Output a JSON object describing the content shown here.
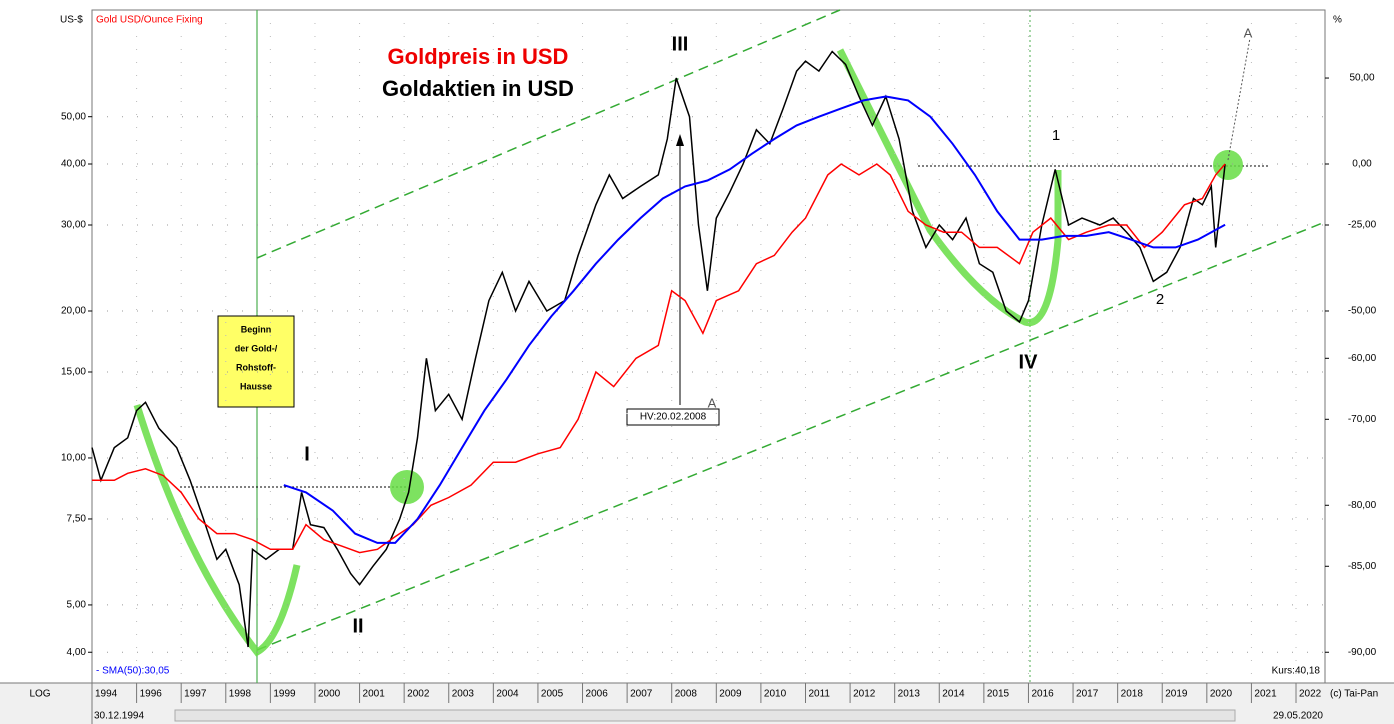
{
  "chart_data": {
    "type": "line",
    "title": "Goldpreis in USD",
    "subtitle": "Goldaktien in USD",
    "log_scale": true,
    "grid": true,
    "y_axis_label": "US-$",
    "y2_axis_label": "%",
    "legend_gold": "Gold USD/Ounce Fixing",
    "sma_label": "- SMA(50):30,05",
    "price_label": "Kurs:40,18",
    "scale_mode": "LOG",
    "start_date": "30.12.1994",
    "end_date": "29.05.2020",
    "copyright": "(c) Tai-Pan",
    "x_first_label": "1994",
    "annotations": {
      "I": "I",
      "II": "II",
      "III": "III",
      "IV": "IV",
      "one": "1",
      "two": "2",
      "a1": "A",
      "a2": "A",
      "hv": "HV:20.02.2008",
      "box": [
        "Beginn",
        "der Gold-/",
        "Rohstoff-",
        "Hausse"
      ]
    },
    "xlim": [
      1995,
      2022.65
    ],
    "xticks": [
      1996,
      1997,
      1998,
      1999,
      2000,
      2001,
      2002,
      2003,
      2004,
      2005,
      2006,
      2007,
      2008,
      2009,
      2010,
      2011,
      2012,
      2013,
      2014,
      2015,
      2016,
      2017,
      2018,
      2019,
      2020,
      2021,
      2022
    ],
    "ylim": [
      3.46,
      82.7
    ],
    "yticks": [
      {
        "value": 4,
        "label": "4,00"
      },
      {
        "value": 5,
        "label": "5,00"
      },
      {
        "value": 7.5,
        "label": "7,50"
      },
      {
        "value": 10,
        "label": "10,00"
      },
      {
        "value": 15,
        "label": "15,00"
      },
      {
        "value": 20,
        "label": "20,00"
      },
      {
        "value": 30,
        "label": "30,00"
      },
      {
        "value": 40,
        "label": "40,00"
      },
      {
        "value": 50,
        "label": "50,00"
      }
    ],
    "y2lim": [
      -91.35,
      106.75
    ],
    "y2ticks": [
      {
        "value": -90,
        "label": "-90,00"
      },
      {
        "value": -85,
        "label": "-85,00"
      },
      {
        "value": -80,
        "label": "-80,00"
      },
      {
        "value": -70,
        "label": "-70,00"
      },
      {
        "value": -60,
        "label": "-60,00"
      },
      {
        "value": -50,
        "label": "-50,00"
      },
      {
        "value": -25,
        "label": "-25,00"
      },
      {
        "value": 0,
        "label": "0,00"
      },
      {
        "value": 50,
        "label": "50,00"
      }
    ],
    "series": [
      {
        "name": "Goldaktien in USD",
        "color": "#000000",
        "x": [
          1995.0,
          1995.2,
          1995.5,
          1995.8,
          1996.0,
          1996.2,
          1996.5,
          1996.9,
          1997.2,
          1997.5,
          1997.8,
          1998.0,
          1998.3,
          1998.5,
          1998.6,
          1998.9,
          1999.2,
          1999.5,
          1999.7,
          1999.9,
          2000.2,
          2000.5,
          2000.8,
          2001.0,
          2001.3,
          2001.6,
          2001.9,
          2002.1,
          2002.3,
          2002.5,
          2002.7,
          2003.0,
          2003.3,
          2003.6,
          2003.9,
          2004.2,
          2004.5,
          2004.8,
          2005.2,
          2005.6,
          2005.9,
          2006.3,
          2006.6,
          2006.9,
          2007.3,
          2007.7,
          2007.9,
          2008.1,
          2008.4,
          2008.6,
          2008.8,
          2009.0,
          2009.3,
          2009.6,
          2009.9,
          2010.2,
          2010.5,
          2010.8,
          2011.0,
          2011.3,
          2011.6,
          2011.9,
          2012.2,
          2012.5,
          2012.8,
          2013.1,
          2013.4,
          2013.7,
          2014.0,
          2014.3,
          2014.6,
          2014.9,
          2015.2,
          2015.5,
          2015.8,
          2016.0,
          2016.3,
          2016.6,
          2016.9,
          2017.2,
          2017.6,
          2017.9,
          2018.2,
          2018.5,
          2018.8,
          2019.1,
          2019.4,
          2019.7,
          2019.9,
          2020.1,
          2020.2,
          2020.41
        ],
        "values": [
          10.5,
          9.0,
          10.5,
          11,
          12.5,
          13,
          11.5,
          10.5,
          9,
          7.5,
          6.2,
          6.5,
          5.5,
          4.1,
          6.5,
          6.2,
          6.5,
          6.5,
          8.5,
          7.3,
          7.2,
          6.5,
          5.8,
          5.5,
          6.0,
          6.5,
          7.5,
          8.5,
          11,
          16,
          12.5,
          13.5,
          12,
          16,
          21,
          24,
          20,
          23,
          20,
          21,
          26,
          33,
          38,
          34,
          36,
          38,
          45,
          60,
          50,
          30,
          22,
          31,
          35,
          40,
          47,
          44,
          52,
          62,
          65,
          62,
          68,
          64,
          55,
          48,
          55,
          45,
          32,
          27,
          30,
          28,
          31,
          25,
          24,
          20,
          19,
          21,
          30,
          39,
          30,
          31,
          30,
          31,
          29,
          27,
          23,
          24,
          27,
          34,
          33,
          36,
          27,
          40
        ]
      },
      {
        "name": "Goldpreis in USD",
        "color": "#ff0000",
        "x": [
          1995.0,
          1995.5,
          1995.8,
          1996.2,
          1996.6,
          1997.0,
          1997.4,
          1997.8,
          1998.2,
          1998.6,
          1999.0,
          1999.5,
          1999.8,
          2000.2,
          2000.6,
          2001.0,
          2001.4,
          2001.8,
          2002.2,
          2002.6,
          2003.0,
          2003.5,
          2004.0,
          2004.5,
          2005.0,
          2005.5,
          2005.9,
          2006.3,
          2006.7,
          2007.2,
          2007.7,
          2008.0,
          2008.3,
          2008.7,
          2009.0,
          2009.5,
          2009.9,
          2010.3,
          2010.7,
          2011.0,
          2011.5,
          2011.8,
          2012.2,
          2012.6,
          2012.9,
          2013.3,
          2013.7,
          2014.1,
          2014.5,
          2014.9,
          2015.3,
          2015.8,
          2016.1,
          2016.5,
          2016.9,
          2017.3,
          2017.8,
          2018.2,
          2018.6,
          2019.0,
          2019.5,
          2019.9,
          2020.2,
          2020.41
        ],
        "values": [
          9,
          9,
          9.3,
          9.5,
          9.2,
          8.5,
          7.5,
          7.0,
          7.0,
          6.8,
          6.5,
          6.5,
          7.3,
          6.8,
          6.6,
          6.4,
          6.5,
          6.9,
          7.3,
          8.0,
          8.3,
          8.8,
          9.8,
          9.8,
          10.2,
          10.5,
          12,
          15,
          14,
          16,
          17,
          22,
          21,
          18,
          21,
          22,
          25,
          26,
          29,
          31,
          38,
          40,
          38,
          40,
          38,
          32,
          30,
          29,
          29,
          27,
          27,
          25,
          29,
          31,
          28,
          29,
          30,
          30,
          27,
          29,
          33,
          34,
          38,
          40
        ]
      },
      {
        "name": "SMA(50)",
        "color": "#0000ff",
        "x": [
          1999.3,
          1999.8,
          2000.4,
          2000.9,
          2001.4,
          2001.8,
          2002.3,
          2002.8,
          2003.3,
          2003.8,
          2004.3,
          2004.8,
          2005.3,
          2005.8,
          2006.3,
          2006.8,
          2007.3,
          2007.8,
          2008.3,
          2008.8,
          2009.3,
          2009.8,
          2010.3,
          2010.8,
          2011.3,
          2011.8,
          2012.3,
          2012.8,
          2013.3,
          2013.8,
          2014.3,
          2014.8,
          2015.3,
          2015.8,
          2016.3,
          2016.8,
          2017.3,
          2017.8,
          2018.3,
          2018.8,
          2019.3,
          2019.8,
          2020.41
        ],
        "values": [
          8.8,
          8.5,
          7.8,
          7.0,
          6.7,
          6.7,
          7.5,
          8.8,
          10.5,
          12.5,
          14.5,
          17,
          19.5,
          22,
          25,
          28,
          31,
          34,
          36,
          37,
          39,
          42,
          45,
          48,
          50,
          52,
          54,
          55,
          54,
          50,
          44,
          38,
          32,
          28,
          28,
          28.5,
          28.5,
          29,
          28,
          27,
          27,
          28,
          30.05
        ]
      }
    ]
  }
}
